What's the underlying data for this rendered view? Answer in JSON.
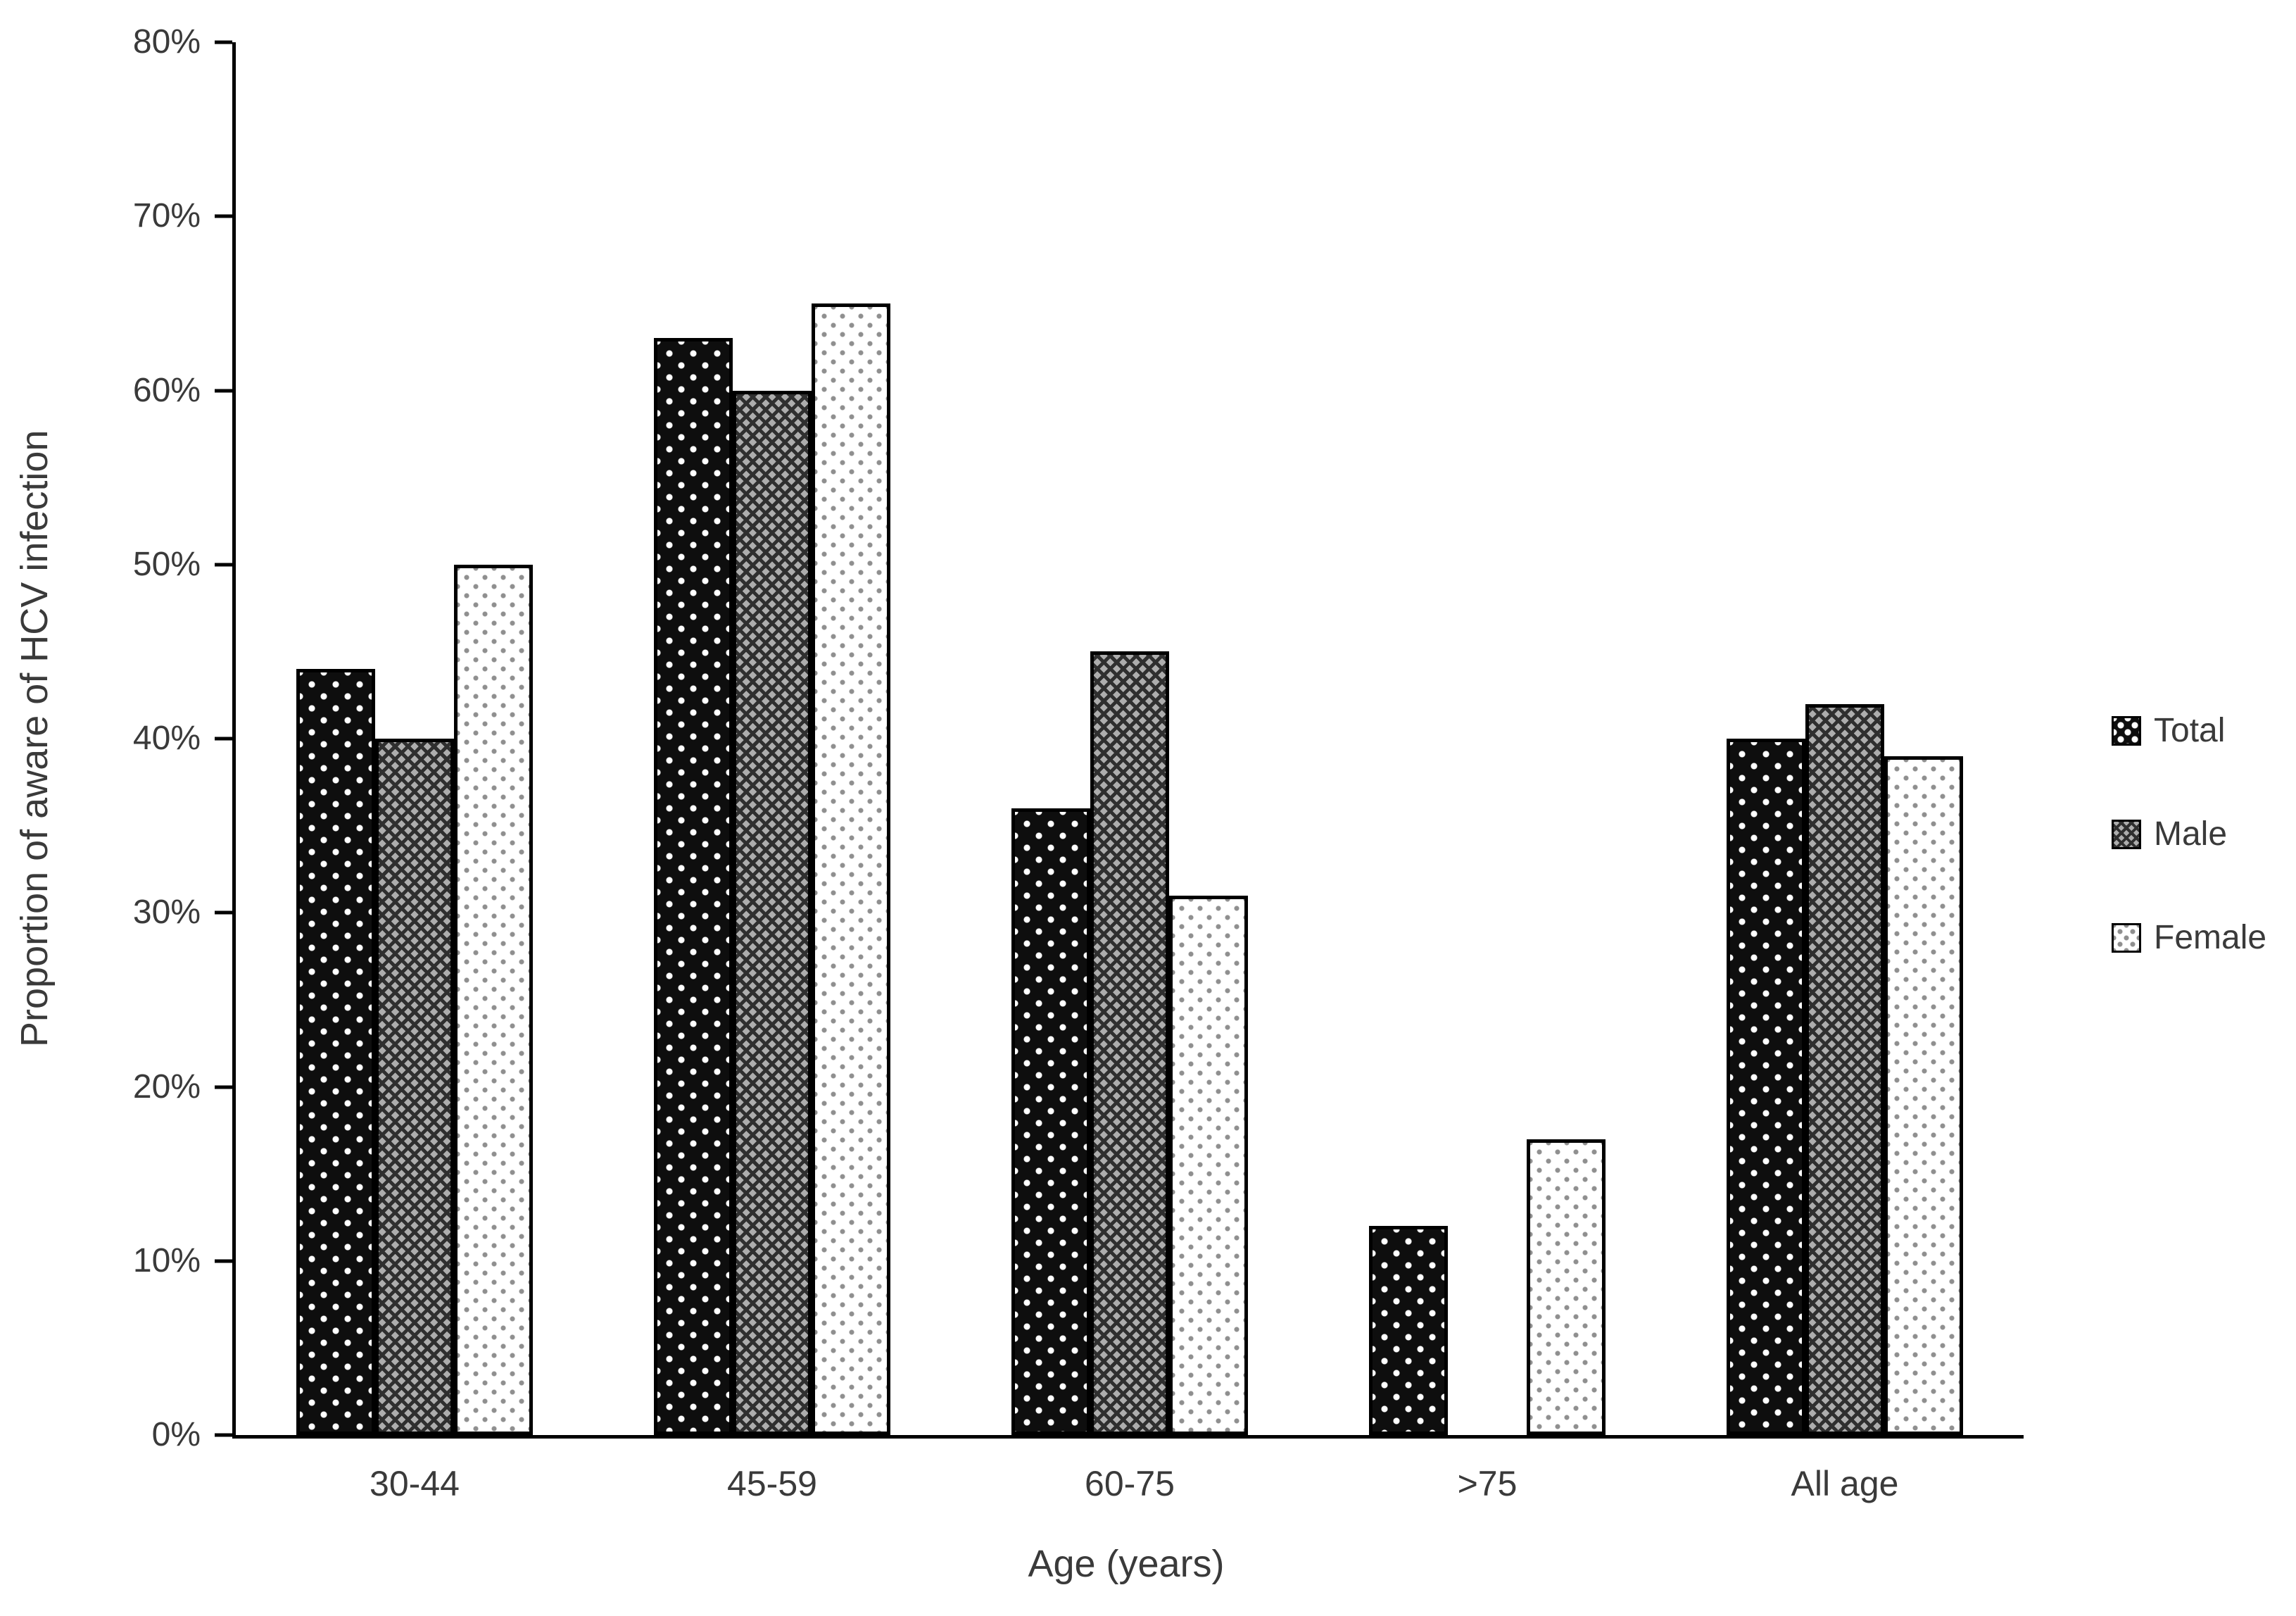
{
  "chart_data": {
    "type": "bar",
    "title": "",
    "xlabel": "Age (years)",
    "ylabel": "Proportion of aware of HCV infection",
    "categories": [
      "30-44",
      "45-59",
      "60-75",
      ">75",
      "All age"
    ],
    "series": [
      {
        "name": "Total",
        "values": [
          44,
          63,
          36,
          12,
          40
        ]
      },
      {
        "name": "Male",
        "values": [
          40,
          60,
          45,
          null,
          42
        ]
      },
      {
        "name": "Female",
        "values": [
          50,
          65,
          31,
          17,
          39
        ]
      }
    ],
    "ylim": [
      0,
      80
    ],
    "ytick_step": 10,
    "ytick_labels": [
      "0%",
      "10%",
      "20%",
      "30%",
      "40%",
      "50%",
      "60%",
      "70%",
      "80%"
    ],
    "grid": false,
    "legend_position": "right",
    "colors": {
      "total_fill": "#0e0e0e",
      "male_fill": "#7a7a7a",
      "female_fill": "#ffffff",
      "bar_border": "#000000",
      "text": "#3a3a3a",
      "background": "#ffffff"
    }
  }
}
